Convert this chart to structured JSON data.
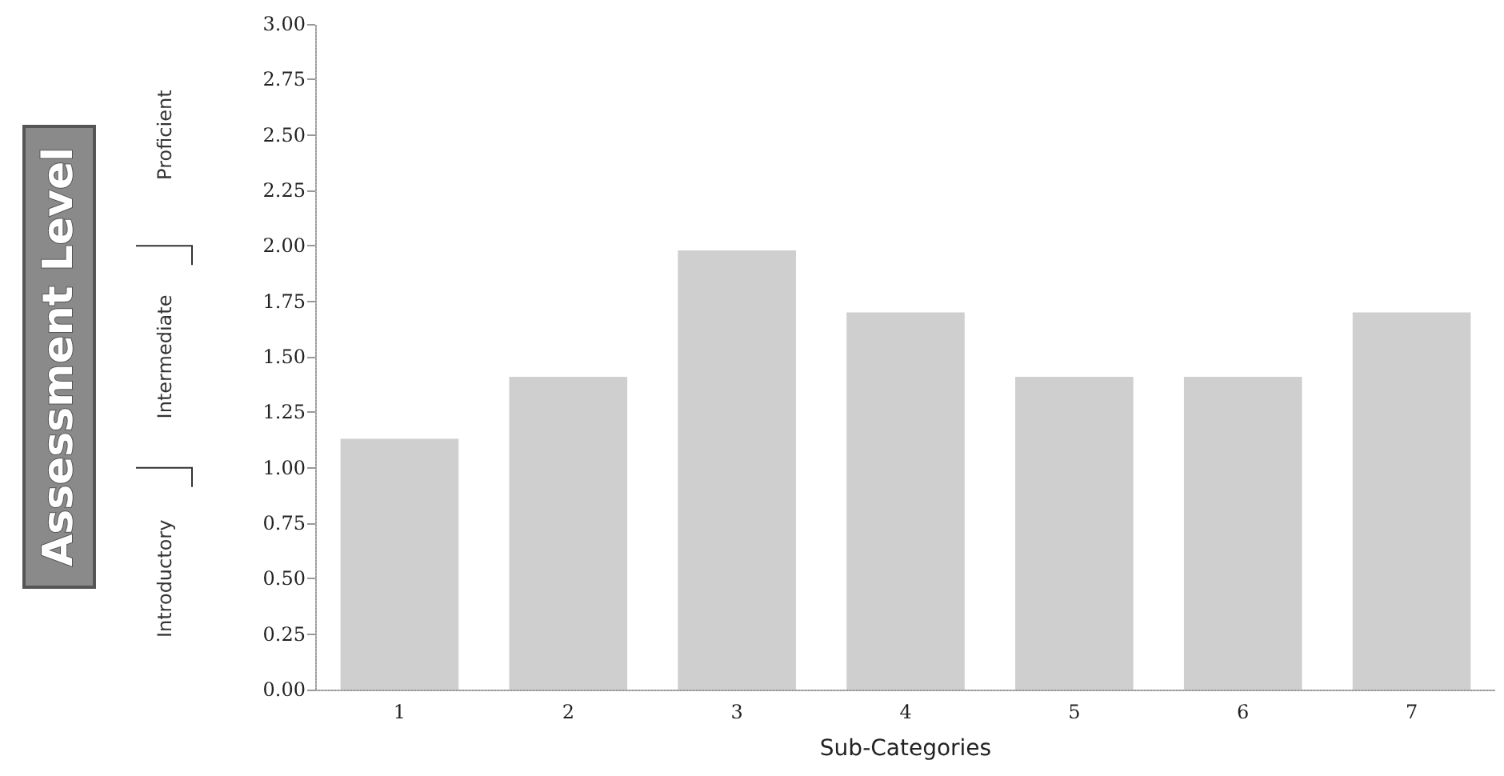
{
  "chart_data": {
    "type": "bar",
    "xlabel": "Sub-Categories",
    "categories": [
      "1",
      "2",
      "3",
      "4",
      "5",
      "6",
      "7"
    ],
    "values": [
      1.13,
      1.41,
      1.98,
      1.7,
      1.41,
      1.41,
      1.7
    ],
    "color": "#cfcfcf",
    "ylim": [
      0,
      3
    ],
    "yticks": [
      {
        "value": 0,
        "label": "0.00"
      },
      {
        "value": 0.25,
        "label": "0.25"
      },
      {
        "value": 0.5,
        "label": "0.50"
      },
      {
        "value": 0.75,
        "label": "0.75"
      },
      {
        "value": 1,
        "label": "1.00"
      },
      {
        "value": 1.25,
        "label": "1.25"
      },
      {
        "value": 1.5,
        "label": "1.50"
      },
      {
        "value": 1.75,
        "label": "1.75"
      },
      {
        "value": 2,
        "label": "2.00"
      },
      {
        "value": 2.25,
        "label": "2.25"
      },
      {
        "value": 2.5,
        "label": "2.50"
      },
      {
        "value": 2.75,
        "label": "2.75"
      },
      {
        "value": 3,
        "label": "3.00"
      }
    ],
    "annotations": [
      "Assessment Level",
      "Introductory",
      "Intermediate",
      "Proficient"
    ],
    "grid": false
  }
}
